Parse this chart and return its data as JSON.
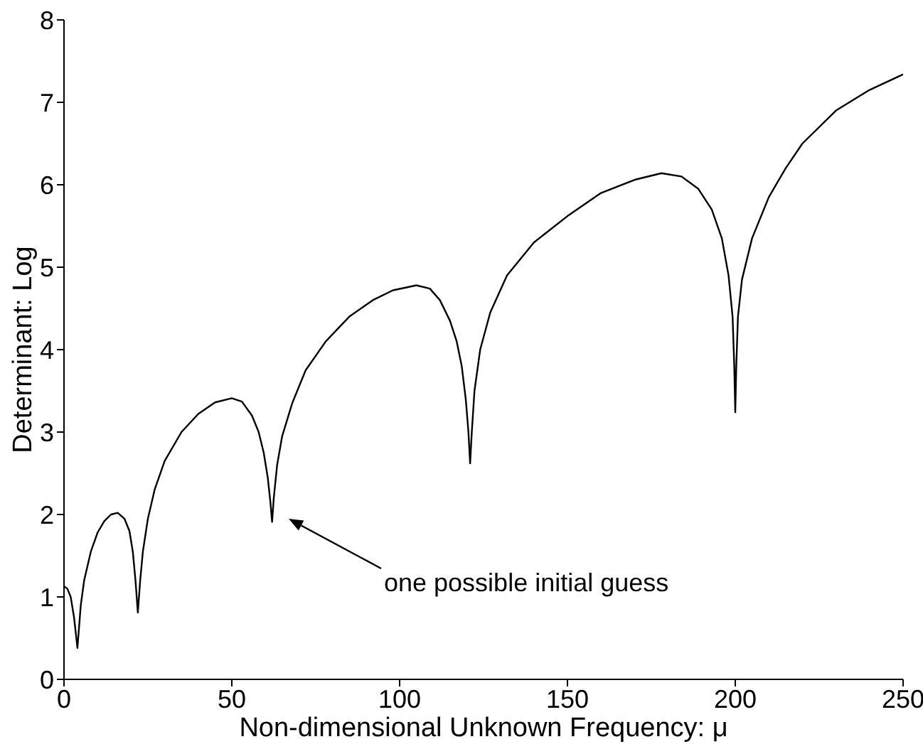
{
  "chart_data": {
    "type": "line",
    "xlabel": "Non-dimensional Unknown Frequency: μ",
    "ylabel": "Determinant: Log",
    "x": [
      0,
      1,
      2,
      3,
      4,
      5,
      6,
      8,
      10,
      12,
      14,
      16,
      18,
      19.5,
      20.5,
      21.3,
      22,
      22.7,
      23.5,
      25,
      27,
      30,
      35,
      40,
      45,
      50,
      53,
      56,
      58,
      59.5,
      60.7,
      61.5,
      62,
      62.5,
      63.5,
      65,
      68,
      72,
      78,
      85,
      92,
      98,
      105,
      109,
      112,
      115,
      117,
      118.5,
      119.7,
      120.5,
      121,
      121.5,
      122.3,
      124,
      127,
      132,
      140,
      150,
      160,
      170,
      178,
      184,
      189,
      193,
      196,
      198,
      199.2,
      199.7,
      200,
      200.3,
      200.8,
      202,
      205,
      210,
      215,
      220,
      230,
      240,
      250
    ],
    "series": [
      {
        "color": "#000000",
        "values": [
          1.13,
          1.1,
          1.0,
          0.75,
          0.38,
          0.9,
          1.2,
          1.55,
          1.78,
          1.92,
          2.0,
          2.02,
          1.95,
          1.8,
          1.55,
          1.2,
          0.81,
          1.2,
          1.55,
          1.95,
          2.3,
          2.65,
          3.0,
          3.22,
          3.36,
          3.41,
          3.37,
          3.2,
          3.0,
          2.75,
          2.45,
          2.15,
          1.91,
          2.2,
          2.6,
          2.95,
          3.35,
          3.75,
          4.1,
          4.4,
          4.6,
          4.72,
          4.78,
          4.74,
          4.6,
          4.35,
          4.1,
          3.8,
          3.4,
          3.0,
          2.62,
          3.0,
          3.5,
          4.0,
          4.45,
          4.9,
          5.3,
          5.62,
          5.9,
          6.06,
          6.14,
          6.1,
          5.95,
          5.7,
          5.35,
          4.9,
          4.4,
          3.8,
          3.24,
          3.8,
          4.4,
          4.85,
          5.35,
          5.85,
          6.2,
          6.5,
          6.9,
          7.15,
          7.34
        ]
      }
    ],
    "xlim": [
      0,
      250
    ],
    "xticks": [
      0,
      50,
      100,
      150,
      200,
      250
    ],
    "ylim": [
      0,
      8
    ],
    "yticks": [
      0,
      1,
      2,
      3,
      4,
      5,
      6,
      7,
      8
    ],
    "grid": false,
    "legend": false,
    "marker": "none",
    "line_style": "solid",
    "annotations": [
      "one possible initial guess"
    ]
  }
}
